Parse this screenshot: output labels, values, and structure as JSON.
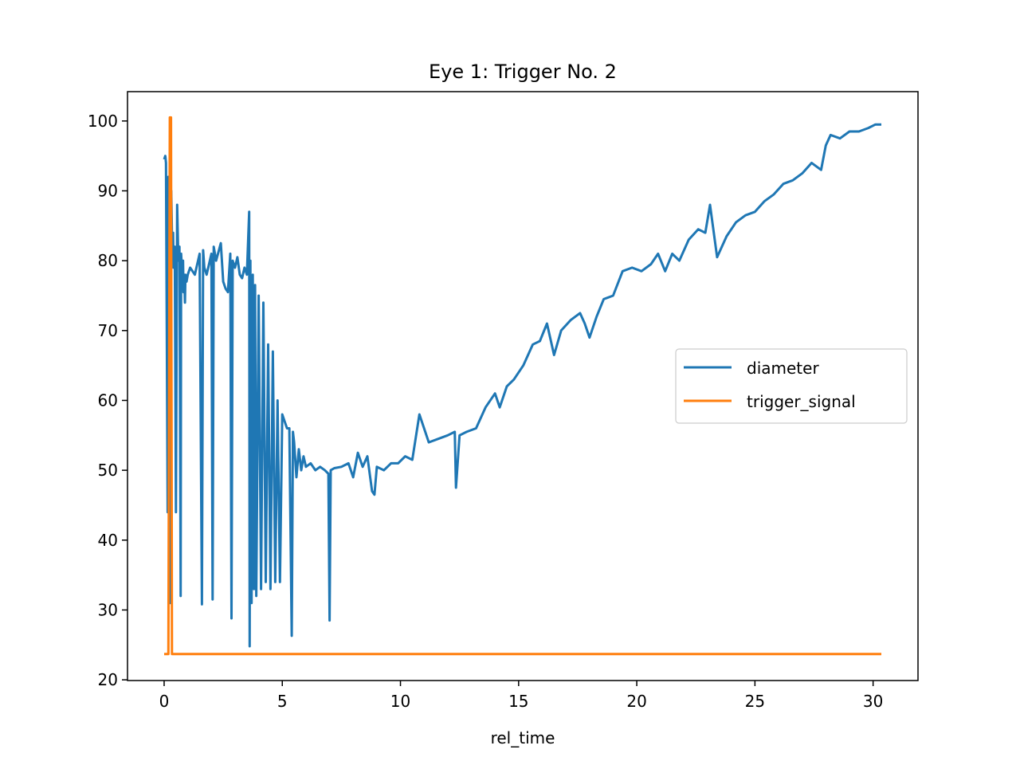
{
  "chart_data": {
    "type": "line",
    "title": "Eye 1: Trigger No. 2",
    "xlabel": "rel_time",
    "ylabel": "",
    "xlim": [
      -1.55,
      31.9
    ],
    "ylim": [
      19.9,
      104.2
    ],
    "xticks": [
      0,
      5,
      10,
      15,
      20,
      25,
      30
    ],
    "yticks": [
      20,
      30,
      40,
      50,
      60,
      70,
      80,
      90,
      100
    ],
    "grid": false,
    "legend_position": "center-right",
    "series": [
      {
        "name": "diameter",
        "color": "#1f77b4",
        "x": [
          0.0,
          0.05,
          0.08,
          0.15,
          0.18,
          0.2,
          0.22,
          0.25,
          0.3,
          0.35,
          0.38,
          0.4,
          0.45,
          0.5,
          0.55,
          0.6,
          0.65,
          0.7,
          0.72,
          0.75,
          0.78,
          0.8,
          0.82,
          0.85,
          0.88,
          0.9,
          0.95,
          1.0,
          1.1,
          1.2,
          1.3,
          1.5,
          1.6,
          1.65,
          1.7,
          1.8,
          2.0,
          2.05,
          2.1,
          2.2,
          2.4,
          2.5,
          2.6,
          2.7,
          2.8,
          2.85,
          2.9,
          3.0,
          3.1,
          3.2,
          3.3,
          3.4,
          3.5,
          3.6,
          3.62,
          3.65,
          3.7,
          3.75,
          3.8,
          3.85,
          3.9,
          4.0,
          4.1,
          4.2,
          4.3,
          4.4,
          4.5,
          4.6,
          4.7,
          4.8,
          4.9,
          5.0,
          5.1,
          5.2,
          5.3,
          5.4,
          5.45,
          5.5,
          5.6,
          5.7,
          5.8,
          5.9,
          6.0,
          6.2,
          6.4,
          6.6,
          6.8,
          6.95,
          7.0,
          7.05,
          7.2,
          7.5,
          7.8,
          8.0,
          8.2,
          8.4,
          8.6,
          8.8,
          8.9,
          9.0,
          9.3,
          9.6,
          9.9,
          10.2,
          10.5,
          10.8,
          11.2,
          11.6,
          12.0,
          12.3,
          12.35,
          12.5,
          12.8,
          13.2,
          13.6,
          14.0,
          14.2,
          14.5,
          14.8,
          15.2,
          15.6,
          15.9,
          16.2,
          16.5,
          16.8,
          17.2,
          17.6,
          17.8,
          18.0,
          18.3,
          18.6,
          19.0,
          19.4,
          19.8,
          20.2,
          20.6,
          20.9,
          21.2,
          21.5,
          21.8,
          22.2,
          22.6,
          22.9,
          23.1,
          23.4,
          23.8,
          24.2,
          24.6,
          25.0,
          25.4,
          25.8,
          26.2,
          26.6,
          27.0,
          27.4,
          27.8,
          28.0,
          28.2,
          28.6,
          29.0,
          29.4,
          29.8,
          30.1,
          30.35
        ],
        "values": [
          94.5,
          95.0,
          94.0,
          44.0,
          92.0,
          85.0,
          89.0,
          31.0,
          90.0,
          80.0,
          84.0,
          79.0,
          82.0,
          44.0,
          88.0,
          80.0,
          82.0,
          32.0,
          81.0,
          79.0,
          77.0,
          80.0,
          75.5,
          78.0,
          74.0,
          78.0,
          77.0,
          78.0,
          79.0,
          78.5,
          78.0,
          81.0,
          30.8,
          81.5,
          79.0,
          78.0,
          81.0,
          31.5,
          82.0,
          80.0,
          82.5,
          77.0,
          76.0,
          75.5,
          81.0,
          28.8,
          80.0,
          79.0,
          80.5,
          78.0,
          77.5,
          79.0,
          78.0,
          87.0,
          24.8,
          80.0,
          31.0,
          78.0,
          33.0,
          76.5,
          32.0,
          75.0,
          33.0,
          74.0,
          34.0,
          68.0,
          33.0,
          67.0,
          34.0,
          60.0,
          34.0,
          58.0,
          57.0,
          56.0,
          56.0,
          26.3,
          55.5,
          54.0,
          49.0,
          53.0,
          50.0,
          52.0,
          50.5,
          51.0,
          50.0,
          50.5,
          50.0,
          49.5,
          28.5,
          50.0,
          50.3,
          50.5,
          51.0,
          49.0,
          52.5,
          50.5,
          52.0,
          47.0,
          46.5,
          50.5,
          50.0,
          51.0,
          51.0,
          52.0,
          51.5,
          58.0,
          54.0,
          54.5,
          55.0,
          55.5,
          47.5,
          55.0,
          55.5,
          56.0,
          59.0,
          61.0,
          59.0,
          62.0,
          63.0,
          65.0,
          68.0,
          68.5,
          71.0,
          66.5,
          70.0,
          71.5,
          72.5,
          71.0,
          69.0,
          72.0,
          74.5,
          75.0,
          78.5,
          79.0,
          78.5,
          79.5,
          81.0,
          78.5,
          81.0,
          80.0,
          83.0,
          84.5,
          84.0,
          88.0,
          80.5,
          83.5,
          85.5,
          86.5,
          87.0,
          88.5,
          89.5,
          91.0,
          91.5,
          92.5,
          94.0,
          93.0,
          96.5,
          98.0,
          97.5,
          98.5,
          98.5,
          99.0,
          99.5,
          99.5
        ]
      },
      {
        "name": "trigger_signal",
        "color": "#ff7f0e",
        "x": [
          0.0,
          0.18,
          0.24,
          0.29,
          0.33,
          30.35
        ],
        "values": [
          23.7,
          23.7,
          100.5,
          100.5,
          23.7,
          23.7
        ]
      }
    ]
  }
}
